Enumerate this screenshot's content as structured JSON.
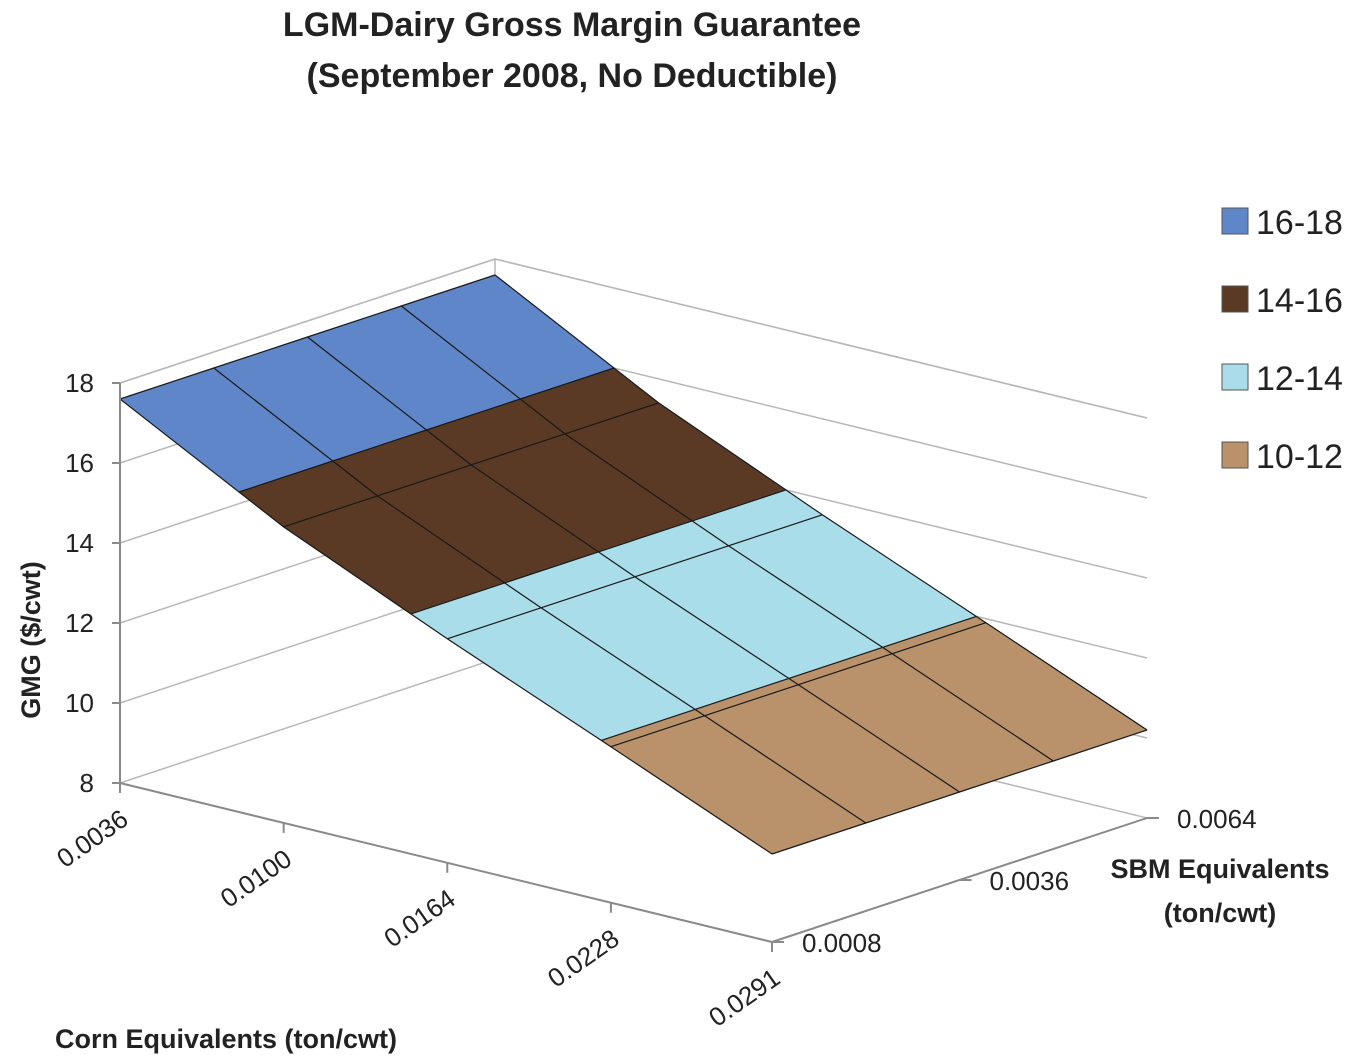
{
  "chart_data": {
    "type": "surface",
    "title_line1": "LGM-Dairy Gross Margin Guarantee",
    "title_line2": "(September 2008, No Deductible)",
    "xlabel": "Corn Equivalents (ton/cwt)",
    "ylabel": "GMG ($/cwt)",
    "zlabel_line1": "SBM Equivalents",
    "zlabel_line2": "(ton/cwt)",
    "x_ticks": [
      "0.0036",
      "0.0100",
      "0.0164",
      "0.0228",
      "0.0291"
    ],
    "depth_ticks": [
      "0.0008",
      "0.0036",
      "0.0064"
    ],
    "y_ticks": [
      "8",
      "10",
      "12",
      "14",
      "16",
      "18"
    ],
    "ylim": [
      8,
      18
    ],
    "x_values": [
      0.0036,
      0.01,
      0.0164,
      0.0228,
      0.0291
    ],
    "depth_values": [
      0.0008,
      0.0022,
      0.0036,
      0.005,
      0.0064
    ],
    "z_values": [
      [
        17.6,
        17.6,
        17.6,
        17.6,
        17.6
      ],
      [
        15.4,
        15.4,
        15.4,
        15.4,
        15.4
      ],
      [
        13.6,
        13.6,
        13.6,
        13.6,
        13.6
      ],
      [
        11.9,
        11.9,
        11.9,
        11.9,
        11.9
      ],
      [
        10.2,
        10.2,
        10.2,
        10.2,
        10.2
      ]
    ],
    "bands": [
      {
        "label": "16-18",
        "min": 16,
        "max": 18,
        "color": "#5f86c9"
      },
      {
        "label": "14-16",
        "min": 14,
        "max": 16,
        "color": "#5a3a24"
      },
      {
        "label": "12-14",
        "min": 12,
        "max": 14,
        "color": "#a9dde9"
      },
      {
        "label": "10-12",
        "min": 10,
        "max": 12,
        "color": "#b9916a"
      }
    ],
    "legend_position": "right"
  }
}
